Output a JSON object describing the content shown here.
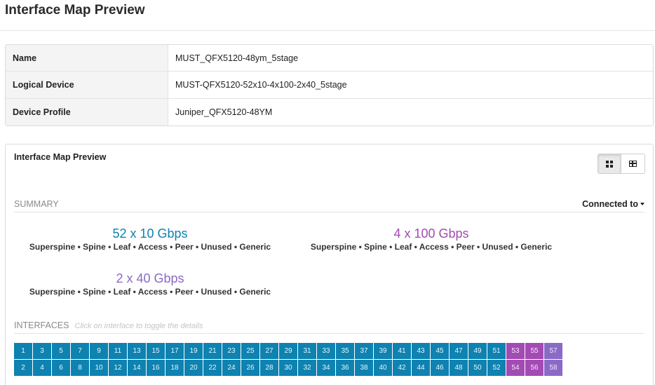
{
  "page": {
    "title": "Interface Map Preview"
  },
  "properties": [
    {
      "key": "Name",
      "value": "MUST_QFX5120-48ym_5stage"
    },
    {
      "key": "Logical Device",
      "value": "MUST-QFX5120-52x10-4x100-2x40_5stage"
    },
    {
      "key": "Device Profile",
      "value": "Juniper_QFX5120-48YM"
    }
  ],
  "panel": {
    "title": "Interface Map Preview",
    "view_toggle": {
      "card_icon": "grid-view-icon",
      "table_icon": "table-view-icon",
      "active": "card"
    }
  },
  "summary": {
    "heading": "SUMMARY",
    "connected_to": "Connected to",
    "speeds": [
      {
        "title": "52 x 10 Gbps",
        "color": "#0e82b0",
        "roles": "Superspine • Spine • Leaf • Access • Peer • Unused • Generic"
      },
      {
        "title": "4 x 100 Gbps",
        "color": "#a24bb3",
        "roles": "Superspine • Spine • Leaf • Access • Peer • Unused • Generic"
      },
      {
        "title": "2 x 40 Gbps",
        "color": "#8a6ac6",
        "roles": "Superspine • Spine • Leaf • Access • Peer • Unused • Generic"
      }
    ]
  },
  "interfaces": {
    "heading": "INTERFACES",
    "hint": "Click on interface to toggle the details",
    "colors": {
      "10g": "#0e82b0",
      "100g": "#a24bb3",
      "40g": "#8a6ac6"
    },
    "top_row": [
      {
        "label": "1",
        "speed": "10g"
      },
      {
        "label": "3",
        "speed": "10g"
      },
      {
        "label": "5",
        "speed": "10g"
      },
      {
        "label": "7",
        "speed": "10g"
      },
      {
        "label": "9",
        "speed": "10g"
      },
      {
        "label": "11",
        "speed": "10g"
      },
      {
        "label": "13",
        "speed": "10g"
      },
      {
        "label": "15",
        "speed": "10g"
      },
      {
        "label": "17",
        "speed": "10g"
      },
      {
        "label": "19",
        "speed": "10g"
      },
      {
        "label": "21",
        "speed": "10g"
      },
      {
        "label": "23",
        "speed": "10g"
      },
      {
        "label": "25",
        "speed": "10g"
      },
      {
        "label": "27",
        "speed": "10g"
      },
      {
        "label": "29",
        "speed": "10g"
      },
      {
        "label": "31",
        "speed": "10g"
      },
      {
        "label": "33",
        "speed": "10g"
      },
      {
        "label": "35",
        "speed": "10g"
      },
      {
        "label": "37",
        "speed": "10g"
      },
      {
        "label": "39",
        "speed": "10g"
      },
      {
        "label": "41",
        "speed": "10g"
      },
      {
        "label": "43",
        "speed": "10g"
      },
      {
        "label": "45",
        "speed": "10g"
      },
      {
        "label": "47",
        "speed": "10g"
      },
      {
        "label": "49",
        "speed": "10g"
      },
      {
        "label": "51",
        "speed": "10g"
      },
      {
        "label": "53",
        "speed": "100g"
      },
      {
        "label": "55",
        "speed": "100g"
      },
      {
        "label": "57",
        "speed": "40g"
      }
    ],
    "bottom_row": [
      {
        "label": "2",
        "speed": "10g"
      },
      {
        "label": "4",
        "speed": "10g"
      },
      {
        "label": "6",
        "speed": "10g"
      },
      {
        "label": "8",
        "speed": "10g"
      },
      {
        "label": "10",
        "speed": "10g"
      },
      {
        "label": "12",
        "speed": "10g"
      },
      {
        "label": "14",
        "speed": "10g"
      },
      {
        "label": "16",
        "speed": "10g"
      },
      {
        "label": "18",
        "speed": "10g"
      },
      {
        "label": "20",
        "speed": "10g"
      },
      {
        "label": "22",
        "speed": "10g"
      },
      {
        "label": "24",
        "speed": "10g"
      },
      {
        "label": "26",
        "speed": "10g"
      },
      {
        "label": "28",
        "speed": "10g"
      },
      {
        "label": "30",
        "speed": "10g"
      },
      {
        "label": "32",
        "speed": "10g"
      },
      {
        "label": "34",
        "speed": "10g"
      },
      {
        "label": "36",
        "speed": "10g"
      },
      {
        "label": "38",
        "speed": "10g"
      },
      {
        "label": "40",
        "speed": "10g"
      },
      {
        "label": "42",
        "speed": "10g"
      },
      {
        "label": "44",
        "speed": "10g"
      },
      {
        "label": "46",
        "speed": "10g"
      },
      {
        "label": "48",
        "speed": "10g"
      },
      {
        "label": "50",
        "speed": "10g"
      },
      {
        "label": "52",
        "speed": "10g"
      },
      {
        "label": "54",
        "speed": "100g"
      },
      {
        "label": "56",
        "speed": "100g"
      },
      {
        "label": "58",
        "speed": "40g"
      }
    ]
  }
}
